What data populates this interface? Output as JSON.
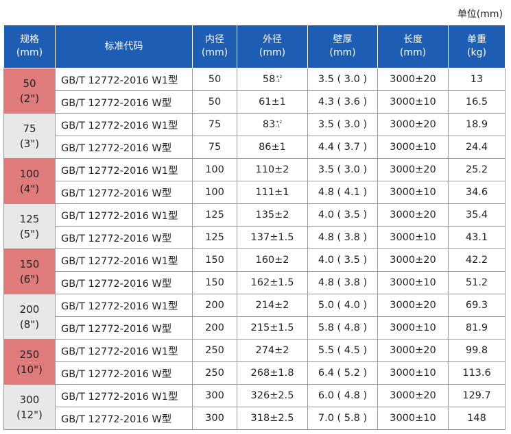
{
  "unit": "单位(mm)",
  "header": [
    [
      "规格",
      "(mm)"
    ],
    [
      "标准代码"
    ],
    [
      "内径",
      "(mm)"
    ],
    [
      "外径",
      "(mm)"
    ],
    [
      "壁厚",
      "(mm)"
    ],
    [
      "长度",
      "(mm)"
    ],
    [
      "单重",
      "(kg)"
    ]
  ],
  "groups": [
    {
      "spec": "50",
      "inch": "(2\")",
      "rows": [
        [
          "GB/T 12772-2016 W1型",
          "50",
          {
            "value": "58",
            "upper": "+2",
            "lower": "-1"
          },
          "3.5 ( 3.0 )",
          "3000±20",
          "13"
        ],
        [
          "GB/T 12772-2016 W型",
          "50",
          "61±1",
          "4.3 ( 3.6 )",
          "3000±10",
          "16.5"
        ]
      ]
    },
    {
      "spec": "75",
      "inch": "(3\")",
      "rows": [
        [
          "GB/T 12772-2016 W1型",
          "75",
          {
            "value": "83",
            "upper": "+2",
            "lower": "-1"
          },
          "3.5 ( 3.0 )",
          "3000±20",
          "18.9"
        ],
        [
          "GB/T 12772-2016 W型",
          "75",
          "86±1",
          "4.4 ( 3.7 )",
          "3000±10",
          "24.4"
        ]
      ]
    },
    {
      "spec": "100",
      "inch": "(4\")",
      "rows": [
        [
          "GB/T 12772-2016 W1型",
          "100",
          "110±2",
          "3.5 ( 3.0 )",
          "3000±20",
          "25.2"
        ],
        [
          "GB/T 12772-2016 W型",
          "100",
          "111±1",
          "4.8 ( 4.1 )",
          "3000±10",
          "34.6"
        ]
      ]
    },
    {
      "spec": "125",
      "inch": "(5\")",
      "rows": [
        [
          "GB/T 12772-2016 W1型",
          "125",
          "135±2",
          "4.0 ( 3.5 )",
          "3000±20",
          "35.4"
        ],
        [
          "GB/T 12772-2016 W型",
          "125",
          "137±1.5",
          "4.8 ( 3.8 )",
          "3000±10",
          "43.1"
        ]
      ]
    },
    {
      "spec": "150",
      "inch": "(6\")",
      "rows": [
        [
          "GB/T 12772-2016 W1型",
          "150",
          "160±2",
          "4.0 ( 3.5 )",
          "3000±20",
          "42.2"
        ],
        [
          "GB/T 12772-2016 W型",
          "150",
          "162±1.5",
          "4.8 ( 3.8 )",
          "3000±10",
          "51.2"
        ]
      ]
    },
    {
      "spec": "200",
      "inch": "(8\")",
      "rows": [
        [
          "GB/T 12772-2016 W1型",
          "200",
          "214±2",
          "5.0 ( 4.0 )",
          "3000±20",
          "69.3"
        ],
        [
          "GB/T 12772-2016 W型",
          "200",
          "215±1.5",
          "5.8 ( 4.8 )",
          "3000±10",
          "81.9"
        ]
      ]
    },
    {
      "spec": "250",
      "inch": "(10\")",
      "rows": [
        [
          "GB/T 12772-2016 W1型",
          "250",
          "274±2",
          "5.5 ( 4.5 )",
          "3000±20",
          "99.8"
        ],
        [
          "GB/T 12772-2016 W型",
          "250",
          "268±1.8",
          "6.4 ( 5.2 )",
          "3000±10",
          "113.6"
        ]
      ]
    },
    {
      "spec": "300",
      "inch": "(12\")",
      "rows": [
        [
          "GB/T 12772-2016 W1型",
          "300",
          "326±2.5",
          "6.0 ( 4.8 )",
          "3000±20",
          "129.7"
        ],
        [
          "GB/T 12772-2016 W型",
          "300",
          "318±2.5",
          "7.0 ( 5.8 )",
          "3000±10",
          "148"
        ]
      ]
    }
  ]
}
